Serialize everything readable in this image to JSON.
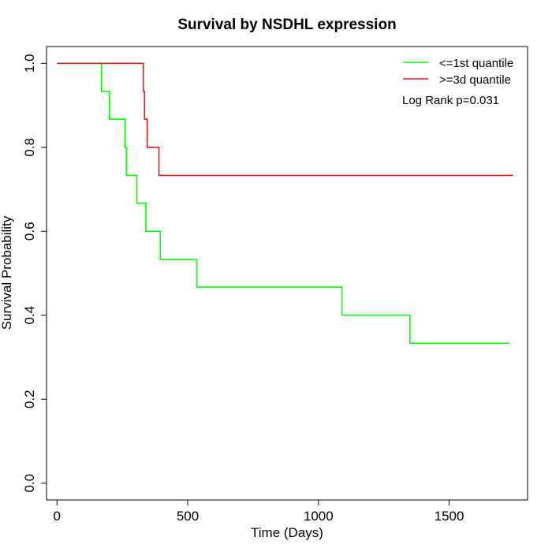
{
  "chart_data": {
    "type": "line",
    "title": "Survival by NSDHL expression",
    "xlabel": "Time (Days)",
    "ylabel": "Survival Probability",
    "xlim": [
      -40,
      1800
    ],
    "ylim": [
      -0.04,
      1.04
    ],
    "x_ticks": [
      0,
      500,
      1000,
      1500
    ],
    "y_ticks": [
      0.0,
      0.2,
      0.4,
      0.6,
      0.8,
      1.0
    ],
    "x_tick_labels": [
      "0",
      "500",
      "1000",
      "1500"
    ],
    "y_tick_labels": [
      "0.0",
      "0.2",
      "0.4",
      "0.6",
      "0.8",
      "1.0"
    ],
    "legend_position": "top-right",
    "annotation": "Log Rank p=0.031",
    "series": [
      {
        "name": "<=1st quantile",
        "color": "#00ff00",
        "x": [
          0,
          170,
          200,
          260,
          265,
          305,
          340,
          395,
          535,
          1090,
          1350,
          1730
        ],
        "y": [
          1.0,
          0.933,
          0.867,
          0.8,
          0.733,
          0.667,
          0.6,
          0.533,
          0.467,
          0.4,
          0.333,
          0.333
        ]
      },
      {
        "name": ">=3d quantile",
        "color": "#e31a1c",
        "x": [
          0,
          330,
          335,
          345,
          360,
          390,
          1745
        ],
        "y": [
          1.0,
          0.933,
          0.867,
          0.8,
          0.8,
          0.733,
          0.733
        ]
      }
    ]
  }
}
